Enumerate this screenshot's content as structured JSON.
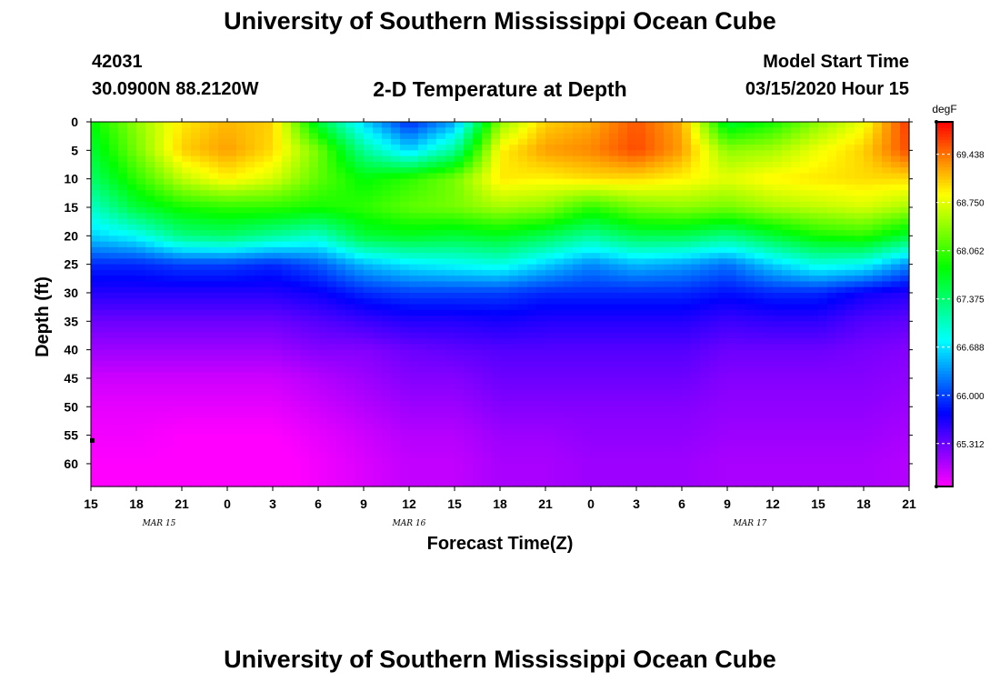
{
  "header": {
    "title": "University of Southern Mississippi Ocean Cube",
    "station_id": "42031",
    "location": "30.0900N 88.2120W",
    "subtitle": "2-D Temperature at Depth",
    "model_start_label": "Model Start Time",
    "model_start_value": "03/15/2020 Hour 15"
  },
  "footer": {
    "title": "University of Southern Mississippi Ocean Cube"
  },
  "chart_data": {
    "type": "heatmap",
    "title": "2-D Temperature at Depth",
    "xlabel": "Forecast Time(Z)",
    "ylabel": "Depth (ft)",
    "x_ticks": [
      "15",
      "18",
      "21",
      "0",
      "3",
      "6",
      "9",
      "12",
      "15",
      "18",
      "21",
      "0",
      "3",
      "6",
      "9",
      "12",
      "15",
      "18",
      "21"
    ],
    "x_range_hours": [
      0,
      54
    ],
    "date_labels": [
      {
        "label": "MAR 15",
        "hour": 4.5
      },
      {
        "label": "MAR 16",
        "hour": 21
      },
      {
        "label": "MAR 17",
        "hour": 43.5
      }
    ],
    "y_ticks": [
      0,
      5,
      10,
      15,
      20,
      25,
      30,
      35,
      40,
      45,
      50,
      55,
      60
    ],
    "ylim_ft": [
      0,
      64
    ],
    "y_inverted": true,
    "colorbar": {
      "unit": "degF",
      "min": 64.7,
      "max": 69.9,
      "ticks": [
        "69.438",
        "68.750",
        "68.062",
        "67.375",
        "66.688",
        "66.000",
        "65.312"
      ]
    },
    "profiles": {
      "times": [
        0,
        3,
        6,
        9,
        12,
        15,
        18,
        21,
        24,
        27,
        30,
        33,
        36,
        39,
        42,
        45,
        48,
        51,
        54
      ],
      "depths": [
        0,
        5,
        10,
        15,
        20,
        25,
        30,
        35,
        40,
        45,
        50,
        55,
        60,
        64
      ],
      "temps": [
        [
          67.8,
          67.6,
          67.4,
          67.0,
          66.6,
          65.9,
          65.6,
          65.3,
          65.1,
          64.9,
          64.8,
          64.75,
          64.7,
          64.7
        ],
        [
          68.4,
          68.3,
          68.0,
          67.6,
          66.8,
          65.9,
          65.6,
          65.3,
          65.1,
          64.9,
          64.8,
          64.75,
          64.7,
          64.7
        ],
        [
          68.95,
          69.05,
          68.6,
          67.9,
          67.3,
          66.0,
          65.6,
          65.3,
          65.1,
          64.9,
          64.8,
          64.7,
          64.7,
          64.7
        ],
        [
          69.15,
          69.25,
          68.9,
          68.0,
          67.4,
          66.0,
          65.6,
          65.3,
          65.1,
          64.9,
          64.8,
          64.7,
          64.65,
          64.65
        ],
        [
          69.05,
          69.0,
          68.7,
          68.0,
          67.2,
          65.9,
          65.6,
          65.3,
          65.1,
          64.9,
          64.8,
          64.7,
          64.65,
          64.65
        ],
        [
          67.6,
          68.3,
          68.2,
          67.9,
          67.0,
          66.1,
          65.7,
          65.4,
          65.2,
          65.0,
          64.9,
          64.8,
          64.75,
          64.75
        ],
        [
          66.6,
          67.2,
          67.8,
          68.0,
          67.6,
          66.5,
          65.9,
          65.5,
          65.2,
          65.1,
          65.0,
          64.9,
          64.85,
          64.85
        ],
        [
          65.9,
          66.6,
          68.0,
          68.2,
          67.7,
          66.7,
          66.0,
          65.6,
          65.3,
          65.2,
          65.1,
          65.0,
          64.95,
          64.95
        ],
        [
          66.4,
          67.2,
          68.3,
          68.3,
          67.6,
          66.8,
          66.0,
          65.6,
          65.35,
          65.2,
          65.1,
          65.0,
          64.95,
          64.95
        ],
        [
          68.4,
          68.9,
          68.95,
          68.5,
          67.7,
          66.9,
          66.0,
          65.65,
          65.4,
          65.3,
          65.2,
          65.1,
          65.05,
          65.05
        ],
        [
          69.05,
          69.25,
          68.9,
          68.4,
          67.5,
          66.6,
          65.9,
          65.6,
          65.4,
          65.3,
          65.2,
          65.1,
          65.05,
          65.05
        ],
        [
          69.2,
          69.35,
          69.0,
          68.0,
          67.2,
          66.3,
          65.9,
          65.6,
          65.4,
          65.3,
          65.2,
          65.15,
          65.1,
          65.1
        ],
        [
          69.55,
          69.6,
          69.0,
          68.3,
          67.5,
          66.5,
          65.9,
          65.6,
          65.4,
          65.3,
          65.2,
          65.15,
          65.1,
          65.1
        ],
        [
          69.2,
          69.25,
          68.9,
          68.4,
          67.5,
          66.4,
          65.9,
          65.6,
          65.4,
          65.3,
          65.2,
          65.15,
          65.1,
          65.1
        ],
        [
          67.6,
          68.4,
          68.75,
          68.3,
          67.3,
          66.2,
          65.8,
          65.5,
          65.3,
          65.2,
          65.15,
          65.1,
          65.05,
          65.05
        ],
        [
          67.9,
          68.5,
          68.9,
          68.5,
          67.6,
          66.6,
          65.9,
          65.55,
          65.3,
          65.2,
          65.15,
          65.1,
          65.05,
          65.05
        ],
        [
          68.4,
          68.8,
          68.95,
          68.6,
          67.9,
          66.9,
          65.9,
          65.55,
          65.3,
          65.2,
          65.15,
          65.1,
          65.05,
          65.05
        ],
        [
          68.8,
          69.05,
          69.0,
          68.7,
          68.0,
          66.8,
          65.7,
          65.4,
          65.25,
          65.2,
          65.15,
          65.1,
          65.05,
          65.05
        ],
        [
          69.7,
          69.6,
          69.0,
          68.5,
          67.6,
          66.3,
          65.6,
          65.35,
          65.2,
          65.15,
          65.1,
          65.05,
          65.0,
          65.0
        ]
      ]
    }
  }
}
